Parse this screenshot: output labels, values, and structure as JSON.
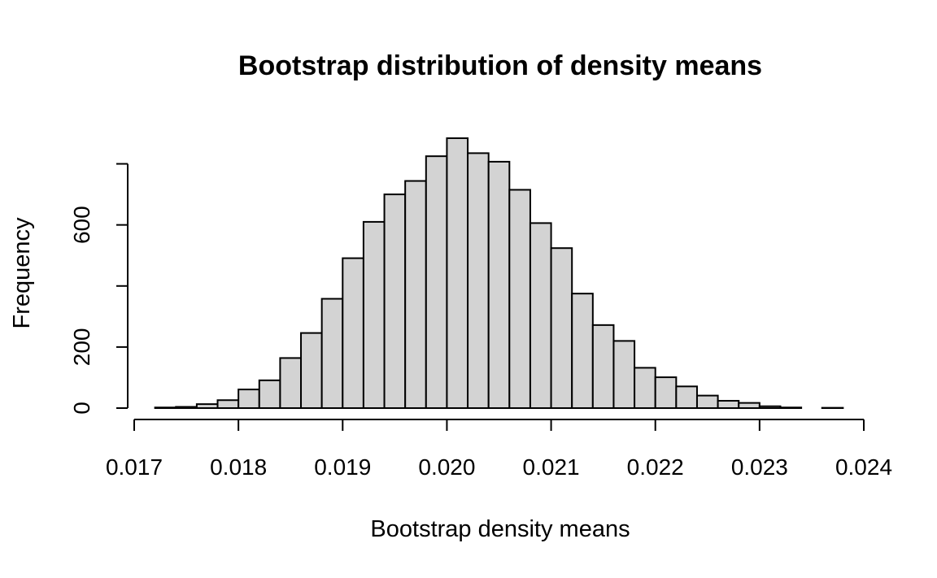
{
  "chart_data": {
    "type": "bar",
    "title": "Bootstrap distribution of density means",
    "xlabel": "Bootstrap density means",
    "ylabel": "Frequency",
    "bin_width": 0.0002,
    "bin_start": 0.0172,
    "values": [
      2,
      4,
      13,
      26,
      61,
      91,
      164,
      246,
      358,
      491,
      610,
      700,
      744,
      825,
      884,
      835,
      807,
      715,
      606,
      524,
      375,
      272,
      220,
      132,
      101,
      71,
      41,
      24,
      17,
      6,
      2,
      0,
      1
    ],
    "xlim": [
      0.017,
      0.024
    ],
    "ylim": [
      0,
      884
    ],
    "x_ticks": [
      "0.017",
      "0.018",
      "0.019",
      "0.020",
      "0.021",
      "0.022",
      "0.023",
      "0.024"
    ],
    "y_ticks": [
      0,
      200,
      400,
      600,
      800
    ],
    "y_tick_labels": [
      "0",
      "200",
      "",
      "600",
      ""
    ],
    "grid": false,
    "legend": "none"
  }
}
